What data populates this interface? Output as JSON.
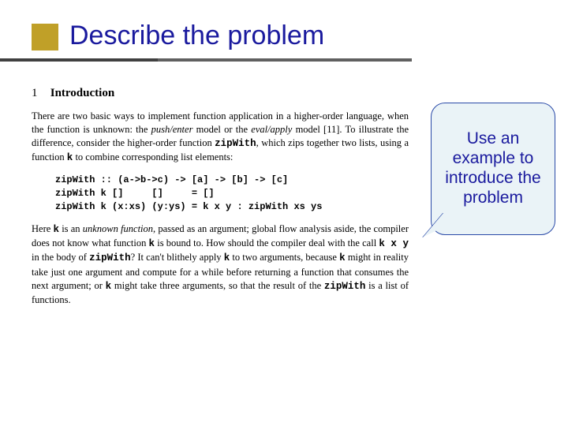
{
  "slide": {
    "title": "Describe the problem",
    "accent_color": "#c0a028",
    "title_color": "#1a1a9e",
    "underline_color_outer": "#606060",
    "underline_color_inner": "#404040"
  },
  "section": {
    "number": "1",
    "title": "Introduction"
  },
  "paragraphs": {
    "p1a": "There are two basic ways to implement function application in a higher-order language, when the function is unknown: the ",
    "p1b": "push/enter",
    "p1c": " model or the ",
    "p1d": "eval/apply",
    "p1e": " model [11]. To illustrate the difference, consider the higher-order function ",
    "p1f": "zipWith",
    "p1g": ", which zips together two lists, using a function ",
    "p1h": "k",
    "p1i": " to combine corresponding list elements:"
  },
  "code": {
    "l1": "zipWith :: (a->b->c) -> [a] -> [b] -> [c]",
    "l2": "zipWith k []     []     = []",
    "l3": "zipWith k (x:xs) (y:ys) = k x y : zipWith xs ys"
  },
  "paragraphs2": {
    "p2a": "Here ",
    "p2b": "k",
    "p2c": " is an ",
    "p2d": "unknown function",
    "p2e": ", passed as an argument; global flow analysis aside, the compiler does not know what function ",
    "p2f": "k",
    "p2g": " is bound to. How should the compiler deal with the call ",
    "p2h": "k x y",
    "p2i": " in the body of ",
    "p2j": "zipWith",
    "p2k": "? It can't blithely apply ",
    "p2l": "k",
    "p2m": " to two arguments, because ",
    "p2n": "k",
    "p2o": " might in reality take just one argument and compute for a while before returning a function that consumes the next argument; or ",
    "p2p": "k",
    "p2q": " might take three arguments, so that the result of the ",
    "p2r": "zipWith",
    "p2s": " is a list of functions."
  },
  "callout": {
    "text": "Use an example to introduce the problem",
    "bg_color": "#eaf3f7",
    "border_color": "#2a4aa8",
    "text_color": "#1a1a9e"
  }
}
